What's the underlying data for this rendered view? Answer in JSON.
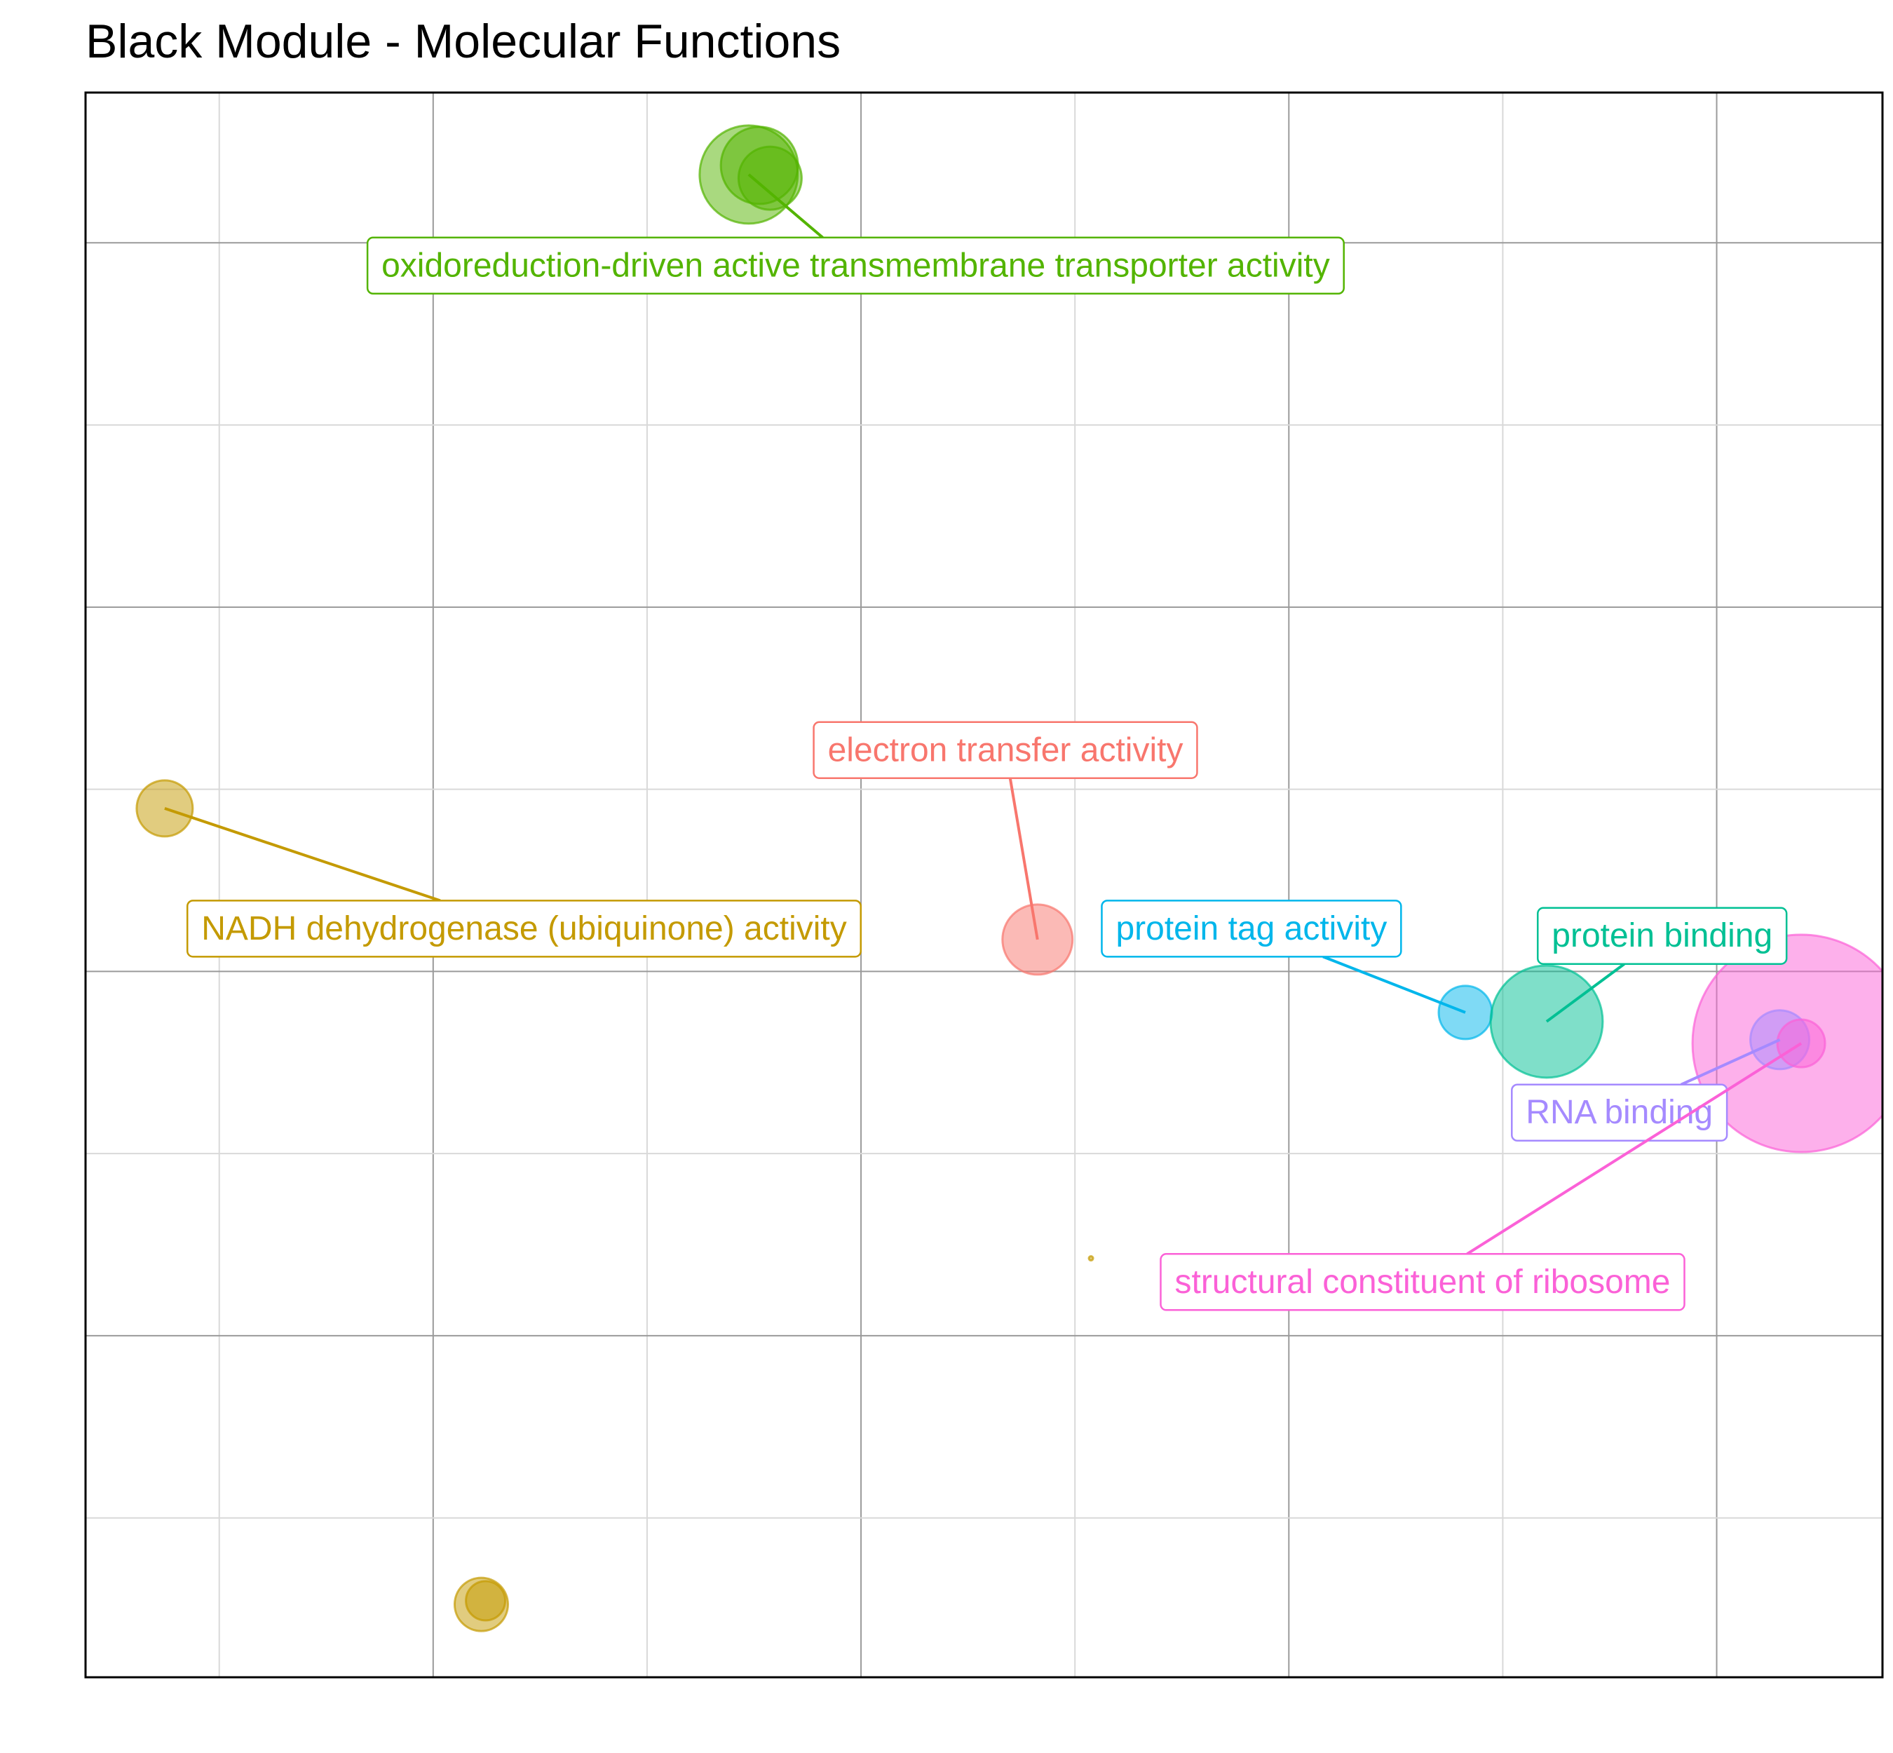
{
  "chart_data": {
    "type": "scatter",
    "title": "Black Module - Molecular Functions",
    "xlabel": "",
    "ylabel": "",
    "grid": true,
    "legend": "none",
    "xlim": [
      0,
      8.4
    ],
    "ylim": [
      0,
      8.7
    ],
    "x_gridlines": [
      0.625,
      1.625,
      2.625,
      3.625,
      4.625,
      5.625,
      6.625,
      7.625
    ],
    "y_gridlines": [
      0.875,
      1.875,
      2.875,
      3.875,
      4.875,
      5.875,
      6.875,
      7.875
    ],
    "points": [
      {
        "term": "oxidoreduction-driven active transmembrane transporter activity",
        "x": 3.1,
        "y": 8.25,
        "size": 70,
        "color": "#53B400",
        "labeled": true
      },
      {
        "term": "oxidoreduction-driven active transmembrane transporter activity",
        "x": 3.15,
        "y": 8.3,
        "size": 55,
        "color": "#53B400",
        "labeled": false
      },
      {
        "term": "oxidoreduction-driven active transmembrane transporter activity",
        "x": 3.2,
        "y": 8.23,
        "size": 45,
        "color": "#53B400",
        "labeled": false
      },
      {
        "term": "NADH dehydrogenase (ubiquinone) activity",
        "x": 0.37,
        "y": 4.77,
        "size": 40,
        "color": "#C49A00",
        "labeled": true
      },
      {
        "term": "NADH dehydrogenase (ubiquinone) activity",
        "x": 1.85,
        "y": 0.4,
        "size": 38,
        "color": "#C49A00",
        "labeled": false
      },
      {
        "term": "NADH dehydrogenase (ubiquinone) activity",
        "x": 1.87,
        "y": 0.42,
        "size": 28,
        "color": "#C49A00",
        "labeled": false
      },
      {
        "term": "NADH dehydrogenase (ubiquinone) activity",
        "x": 4.7,
        "y": 2.3,
        "size": 3,
        "color": "#C49A00",
        "labeled": false
      },
      {
        "term": "electron transfer activity",
        "x": 4.45,
        "y": 4.05,
        "size": 50,
        "color": "#F8766D",
        "labeled": true
      },
      {
        "term": "protein tag activity",
        "x": 6.45,
        "y": 3.65,
        "size": 38,
        "color": "#00B6EB",
        "labeled": true
      },
      {
        "term": "protein binding",
        "x": 6.83,
        "y": 3.6,
        "size": 80,
        "color": "#00C094",
        "labeled": true
      },
      {
        "term": "structural constituent of ribosome",
        "x": 8.02,
        "y": 3.48,
        "size": 155,
        "color": "#FB61D7",
        "labeled": true
      },
      {
        "term": "RNA binding",
        "x": 7.92,
        "y": 3.5,
        "size": 42,
        "color": "#A58AFF",
        "labeled": true
      },
      {
        "term": "structural constituent of ribosome",
        "x": 8.02,
        "y": 3.48,
        "size": 34,
        "color": "#FB61D7",
        "labeled": false
      }
    ],
    "annotations": [
      {
        "text": "oxidoreduction-driven active transmembrane transporter activity",
        "color": "#53B400",
        "anchor_x": 3.1,
        "anchor_y": 8.25,
        "label_x": 3.6,
        "label_y": 7.75
      },
      {
        "text": "electron transfer activity",
        "color": "#F8766D",
        "anchor_x": 4.45,
        "anchor_y": 4.05,
        "label_x": 4.3,
        "label_y": 5.09
      },
      {
        "text": "NADH dehydrogenase (ubiquinone) activity",
        "color": "#C49A00",
        "anchor_x": 0.37,
        "anchor_y": 4.77,
        "label_x": 2.05,
        "label_y": 4.11
      },
      {
        "text": "protein tag activity",
        "color": "#00B6EB",
        "anchor_x": 6.45,
        "anchor_y": 3.65,
        "label_x": 5.45,
        "label_y": 4.11
      },
      {
        "text": "protein binding",
        "color": "#00C094",
        "anchor_x": 6.83,
        "anchor_y": 3.6,
        "label_x": 7.37,
        "label_y": 4.07
      },
      {
        "text": "RNA binding",
        "color": "#A58AFF",
        "anchor_x": 7.92,
        "anchor_y": 3.5,
        "label_x": 7.17,
        "label_y": 3.1
      },
      {
        "text": "structural constituent of ribosome",
        "color": "#FB61D7",
        "anchor_x": 8.02,
        "anchor_y": 3.48,
        "label_x": 6.25,
        "label_y": 2.17
      }
    ]
  }
}
